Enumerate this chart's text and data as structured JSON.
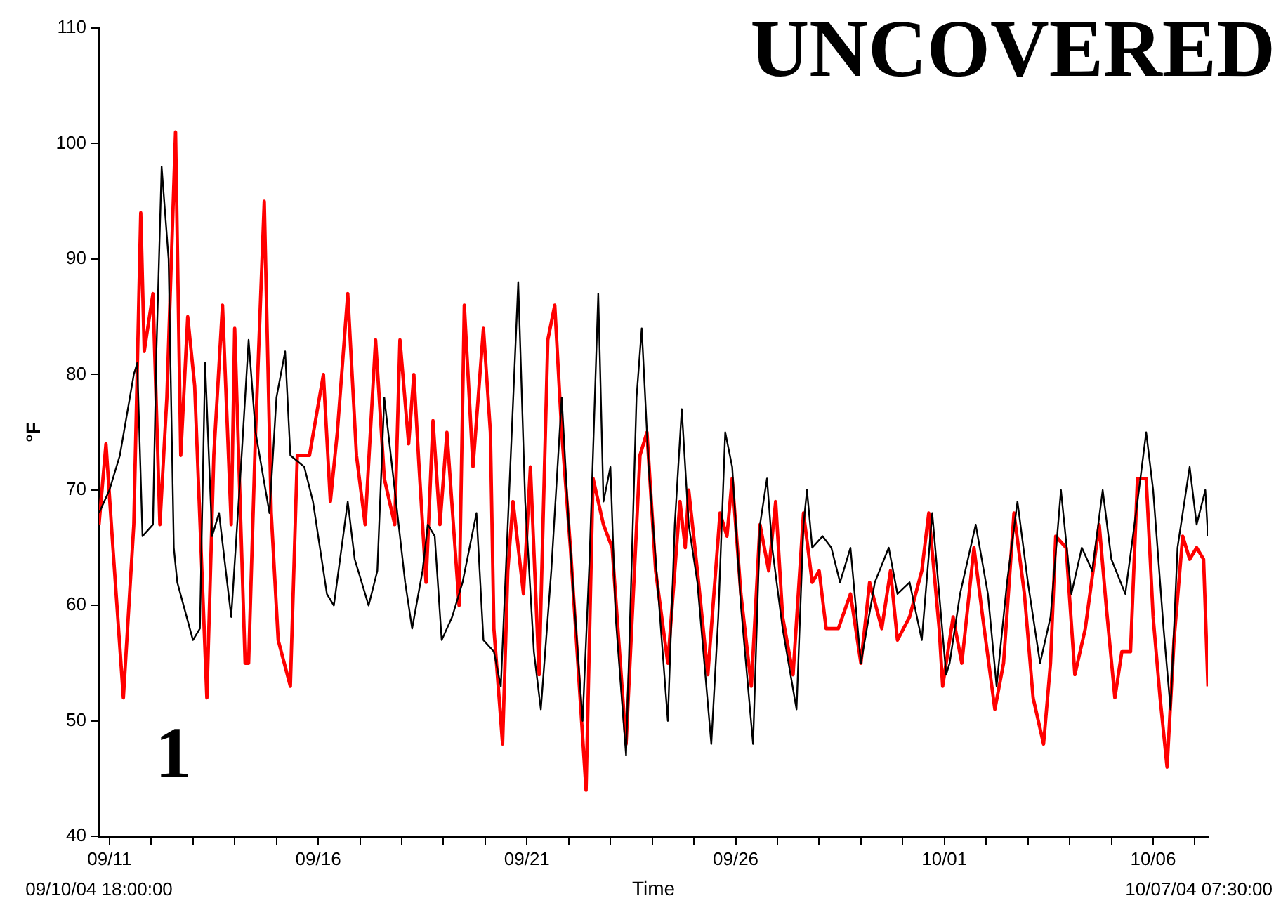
{
  "chart_data": {
    "type": "line",
    "title": "UNCOVERED",
    "xlabel": "Time",
    "ylabel": "°F",
    "annotations": [
      "09/10/04 18:00:00",
      "10/07/04 07:30:00",
      "1"
    ],
    "xlim": [
      "--09-10T18:00",
      "--10-07T07:30"
    ],
    "xticks": [
      {
        "value": "--09-11",
        "label": "09/11"
      },
      {
        "value": "--09-12",
        "label": null
      },
      {
        "value": "--09-13",
        "label": null
      },
      {
        "value": "--09-14",
        "label": null
      },
      {
        "value": "--09-15",
        "label": null
      },
      {
        "value": "--09-16",
        "label": "09/16"
      },
      {
        "value": "--09-17",
        "label": null
      },
      {
        "value": "--09-18",
        "label": null
      },
      {
        "value": "--09-19",
        "label": null
      },
      {
        "value": "--09-20",
        "label": null
      },
      {
        "value": "--09-21",
        "label": "09/21"
      },
      {
        "value": "--09-22",
        "label": null
      },
      {
        "value": "--09-23",
        "label": null
      },
      {
        "value": "--09-24",
        "label": null
      },
      {
        "value": "--09-25",
        "label": null
      },
      {
        "value": "--09-26",
        "label": "09/26"
      },
      {
        "value": "--09-27",
        "label": null
      },
      {
        "value": "--09-28",
        "label": null
      },
      {
        "value": "--09-29",
        "label": null
      },
      {
        "value": "--09-30",
        "label": null
      },
      {
        "value": "--10-01",
        "label": "10/01"
      },
      {
        "value": "--10-02",
        "label": null
      },
      {
        "value": "--10-03",
        "label": null
      },
      {
        "value": "--10-04",
        "label": null
      },
      {
        "value": "--10-05",
        "label": null
      },
      {
        "value": "--10-06",
        "label": "10/06"
      },
      {
        "value": "--10-07",
        "label": null
      }
    ],
    "ylim": [
      40,
      110
    ],
    "yticks": [
      40,
      50,
      60,
      70,
      80,
      90,
      100,
      110
    ],
    "marker": "none",
    "grid": false,
    "legend": false,
    "series": [
      {
        "color": "#000000",
        "x": [
          "--09-10T18:00",
          "--09-11T00:00",
          "--09-11T06:00",
          "--09-11T14:00",
          "--09-11T16:00",
          "--09-11T19:00",
          "--09-12T01:00",
          "--09-12T03:00",
          "--09-12T06:00",
          "--09-12T10:00",
          "--09-12T13:00",
          "--09-12T15:00",
          "--09-13T00:00",
          "--09-13T04:00",
          "--09-13T07:00",
          "--09-13T11:00",
          "--09-13T15:00",
          "--09-13T22:00",
          "--09-14T04:00",
          "--09-14T08:00",
          "--09-14T12:00",
          "--09-14T20:00",
          "--09-15T00:00",
          "--09-15T05:00",
          "--09-15T08:00",
          "--09-15T16:00",
          "--09-15T21:00",
          "--09-16T05:00",
          "--09-16T09:00",
          "--09-16T17:00",
          "--09-16T21:00",
          "--09-17T05:00",
          "--09-17T10:00",
          "--09-17T14:00",
          "--09-17T20:00",
          "--09-18T02:00",
          "--09-18T06:00",
          "--09-18T12:00",
          "--09-18T15:00",
          "--09-18T19:00",
          "--09-18T23:00",
          "--09-19T05:00",
          "--09-19T11:00",
          "--09-19T19:00",
          "--09-19T23:00",
          "--09-20T05:00",
          "--09-20T09:00",
          "--09-20T13:00",
          "--09-20T19:00",
          "--09-20T23:00",
          "--09-21T04:00",
          "--09-21T08:00",
          "--09-21T14:00",
          "--09-21T20:00",
          "--09-22T00:00",
          "--09-22T08:00",
          "--09-22T12:00",
          "--09-22T17:00",
          "--09-22T20:00",
          "--09-23T00:00",
          "--09-23T03:00",
          "--09-23T09:00",
          "--09-23T15:00",
          "--09-23T18:00",
          "--09-23T22:00",
          "--09-24T03:00",
          "--09-24T09:00",
          "--09-24T13:00",
          "--09-24T17:00",
          "--09-24T21:00",
          "--09-25T02:00",
          "--09-25T10:00",
          "--09-25T14:00",
          "--09-25T18:00",
          "--09-25T22:00",
          "--09-26T03:00",
          "--09-26T10:00",
          "--09-26T14:00",
          "--09-26T18:00",
          "--09-26T21:00",
          "--09-27T03:00",
          "--09-27T11:00",
          "--09-27T15:00",
          "--09-27T17:00",
          "--09-27T20:00",
          "--09-28T02:00",
          "--09-28T07:00",
          "--09-28T12:00",
          "--09-28T18:00",
          "--09-29T00:00",
          "--09-29T08:00",
          "--09-29T16:00",
          "--09-29T21:00",
          "--09-30T04:00",
          "--09-30T11:00",
          "--09-30T17:00",
          "--09-30T21:00",
          "--10-01T01:00",
          "--10-01T03:00",
          "--10-01T09:00",
          "--10-01T18:00",
          "--10-02T01:00",
          "--10-02T06:00",
          "--10-02T12:00",
          "--10-02T18:00",
          "--10-03T00:00",
          "--10-03T07:00",
          "--10-03T13:00",
          "--10-03T19:00",
          "--10-04T01:00",
          "--10-04T07:00",
          "--10-04T13:00",
          "--10-04T19:00",
          "--10-05T00:00",
          "--10-05T08:00",
          "--10-05T15:00",
          "--10-05T20:00",
          "--10-06T00:00",
          "--10-06T06:00",
          "--10-06T10:00",
          "--10-06T14:00",
          "--10-06T21:00",
          "--10-07T01:00",
          "--10-07T06:00",
          "--10-07T07:30"
        ],
        "values": [
          68,
          70,
          73,
          80,
          81,
          66,
          67,
          82,
          98,
          90,
          65,
          62,
          57,
          58,
          81,
          66,
          68,
          59,
          73,
          83,
          75,
          68,
          78,
          82,
          73,
          72,
          69,
          61,
          60,
          69,
          64,
          60,
          63,
          78,
          70,
          62,
          58,
          63,
          67,
          66,
          57,
          59,
          62,
          68,
          57,
          56,
          53,
          67,
          88,
          69,
          56,
          51,
          63,
          78,
          67,
          50,
          64,
          87,
          69,
          72,
          59,
          47,
          78,
          84,
          72,
          62,
          50,
          67,
          77,
          67,
          62,
          48,
          59,
          75,
          72,
          60,
          48,
          67,
          71,
          65,
          58,
          51,
          67,
          70,
          65,
          66,
          65,
          62,
          65,
          55,
          62,
          65,
          61,
          62,
          57,
          68,
          61,
          54,
          55,
          61,
          67,
          61,
          53,
          62,
          69,
          62,
          55,
          59,
          70,
          61,
          65,
          63,
          70,
          64,
          61,
          69,
          75,
          70,
          58,
          51,
          65,
          72,
          67,
          70,
          66
        ]
      },
      {
        "color": "#ff0000",
        "x": [
          "--09-10T18:00",
          "--09-10T22:00",
          "--09-11T02:00",
          "--09-11T08:00",
          "--09-11T14:00",
          "--09-11T18:00",
          "--09-11T20:00",
          "--09-12T01:00",
          "--09-12T05:00",
          "--09-12T09:00",
          "--09-12T14:00",
          "--09-12T17:00",
          "--09-12T21:00",
          "--09-13T01:00",
          "--09-13T08:00",
          "--09-13T12:00",
          "--09-13T17:00",
          "--09-13T22:00",
          "--09-14T00:00",
          "--09-14T06:00",
          "--09-14T08:00",
          "--09-14T12:00",
          "--09-14T17:00",
          "--09-14T21:00",
          "--09-15T01:00",
          "--09-15T08:00",
          "--09-15T12:00",
          "--09-15T19:00",
          "--09-16T03:00",
          "--09-16T07:00",
          "--09-16T11:00",
          "--09-16T17:00",
          "--09-16T22:00",
          "--09-17T03:00",
          "--09-17T09:00",
          "--09-17T14:00",
          "--09-17T20:00",
          "--09-17T23:00",
          "--09-18T04:00",
          "--09-18T07:00",
          "--09-18T10:00",
          "--09-18T14:00",
          "--09-18T18:00",
          "--09-18T22:00",
          "--09-19T02:00",
          "--09-19T09:00",
          "--09-19T12:00",
          "--09-19T17:00",
          "--09-19T23:00",
          "--09-20T03:00",
          "--09-20T05:00",
          "--09-20T10:00",
          "--09-20T13:00",
          "--09-20T16:00",
          "--09-20T22:00",
          "--09-21T02:00",
          "--09-21T07:00",
          "--09-21T12:00",
          "--09-21T16:00",
          "--09-21T20:00",
          "--09-22T01:00",
          "--09-22T10:00",
          "--09-22T14:00",
          "--09-22T20:00",
          "--09-23T01:00",
          "--09-23T09:00",
          "--09-23T17:00",
          "--09-23T21:00",
          "--09-24T02:00",
          "--09-24T09:00",
          "--09-24T16:00",
          "--09-24T19:00",
          "--09-24T21:00",
          "--09-25T02:00",
          "--09-25T08:00",
          "--09-25T15:00",
          "--09-25T19:00",
          "--09-25T22:00",
          "--09-26T03:00",
          "--09-26T09:00",
          "--09-26T14:00",
          "--09-26T19:00",
          "--09-26T23:00",
          "--09-27T03:00",
          "--09-27T09:00",
          "--09-27T15:00",
          "--09-27T20:00",
          "--09-28T00:00",
          "--09-28T04:00",
          "--09-28T11:00",
          "--09-28T18:00",
          "--09-29T00:00",
          "--09-29T05:00",
          "--09-29T12:00",
          "--09-29T17:00",
          "--09-29T21:00",
          "--09-30T04:00",
          "--09-30T11:00",
          "--09-30T15:00",
          "--09-30T21:00",
          "--09-30T23:00",
          "--10-01T05:00",
          "--10-01T10:00",
          "--10-01T17:00",
          "--10-01T22:00",
          "--10-02T05:00",
          "--10-02T10:00",
          "--10-02T16:00",
          "--10-02T22:00",
          "--10-03T03:00",
          "--10-03T09:00",
          "--10-03T13:00",
          "--10-03T16:00",
          "--10-03T22:00",
          "--10-04T03:00",
          "--10-04T09:00",
          "--10-04T17:00",
          "--10-04T21:00",
          "--10-05T02:00",
          "--10-05T06:00",
          "--10-05T11:00",
          "--10-05T15:00",
          "--10-05T20:00",
          "--10-06T00:00",
          "--10-06T04:00",
          "--10-06T08:00",
          "--10-06T12:00",
          "--10-06T17:00",
          "--10-06T21:00",
          "--10-07T01:00",
          "--10-07T05:00",
          "--10-07T07:30"
        ],
        "values": [
          67,
          74,
          65,
          52,
          67,
          94,
          82,
          87,
          67,
          78,
          101,
          73,
          85,
          79,
          52,
          73,
          86,
          67,
          84,
          55,
          55,
          75,
          95,
          68,
          57,
          53,
          73,
          73,
          80,
          69,
          75,
          87,
          73,
          67,
          83,
          71,
          67,
          83,
          74,
          80,
          72,
          62,
          76,
          67,
          75,
          60,
          86,
          72,
          84,
          75,
          58,
          48,
          63,
          69,
          61,
          72,
          54,
          83,
          86,
          75,
          65,
          44,
          71,
          67,
          65,
          48,
          73,
          75,
          63,
          55,
          69,
          65,
          70,
          63,
          54,
          68,
          66,
          71,
          61,
          53,
          67,
          63,
          69,
          59,
          54,
          68,
          62,
          63,
          58,
          58,
          61,
          55,
          62,
          58,
          63,
          57,
          59,
          63,
          68,
          58,
          53,
          59,
          55,
          65,
          59,
          51,
          55,
          68,
          61,
          52,
          48,
          55,
          66,
          65,
          54,
          58,
          67,
          60,
          52,
          56,
          56,
          71,
          71,
          59,
          52,
          46,
          57,
          66,
          64,
          65,
          64,
          53
        ]
      }
    ]
  }
}
